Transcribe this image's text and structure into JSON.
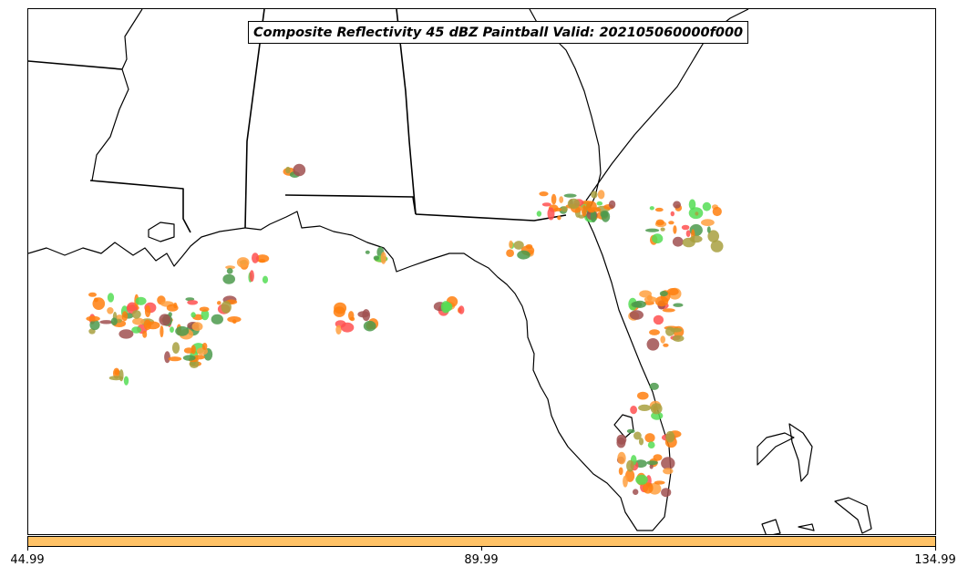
{
  "title": "Composite Reflectivity 45 dBZ Paintball Valid: 202105060000f000",
  "colorbar": {
    "color": "#ffc266",
    "ticks": [
      "44.99",
      "89.99",
      "134.99"
    ]
  },
  "paintball_colors": {
    "orange": "#ff7f0e",
    "red": "#ff5050",
    "light_green": "#55dd55",
    "olive": "#a8a040",
    "brown": "#a05050",
    "dark_green": "#4c9a4c",
    "light_orange": "#ffa040"
  }
}
